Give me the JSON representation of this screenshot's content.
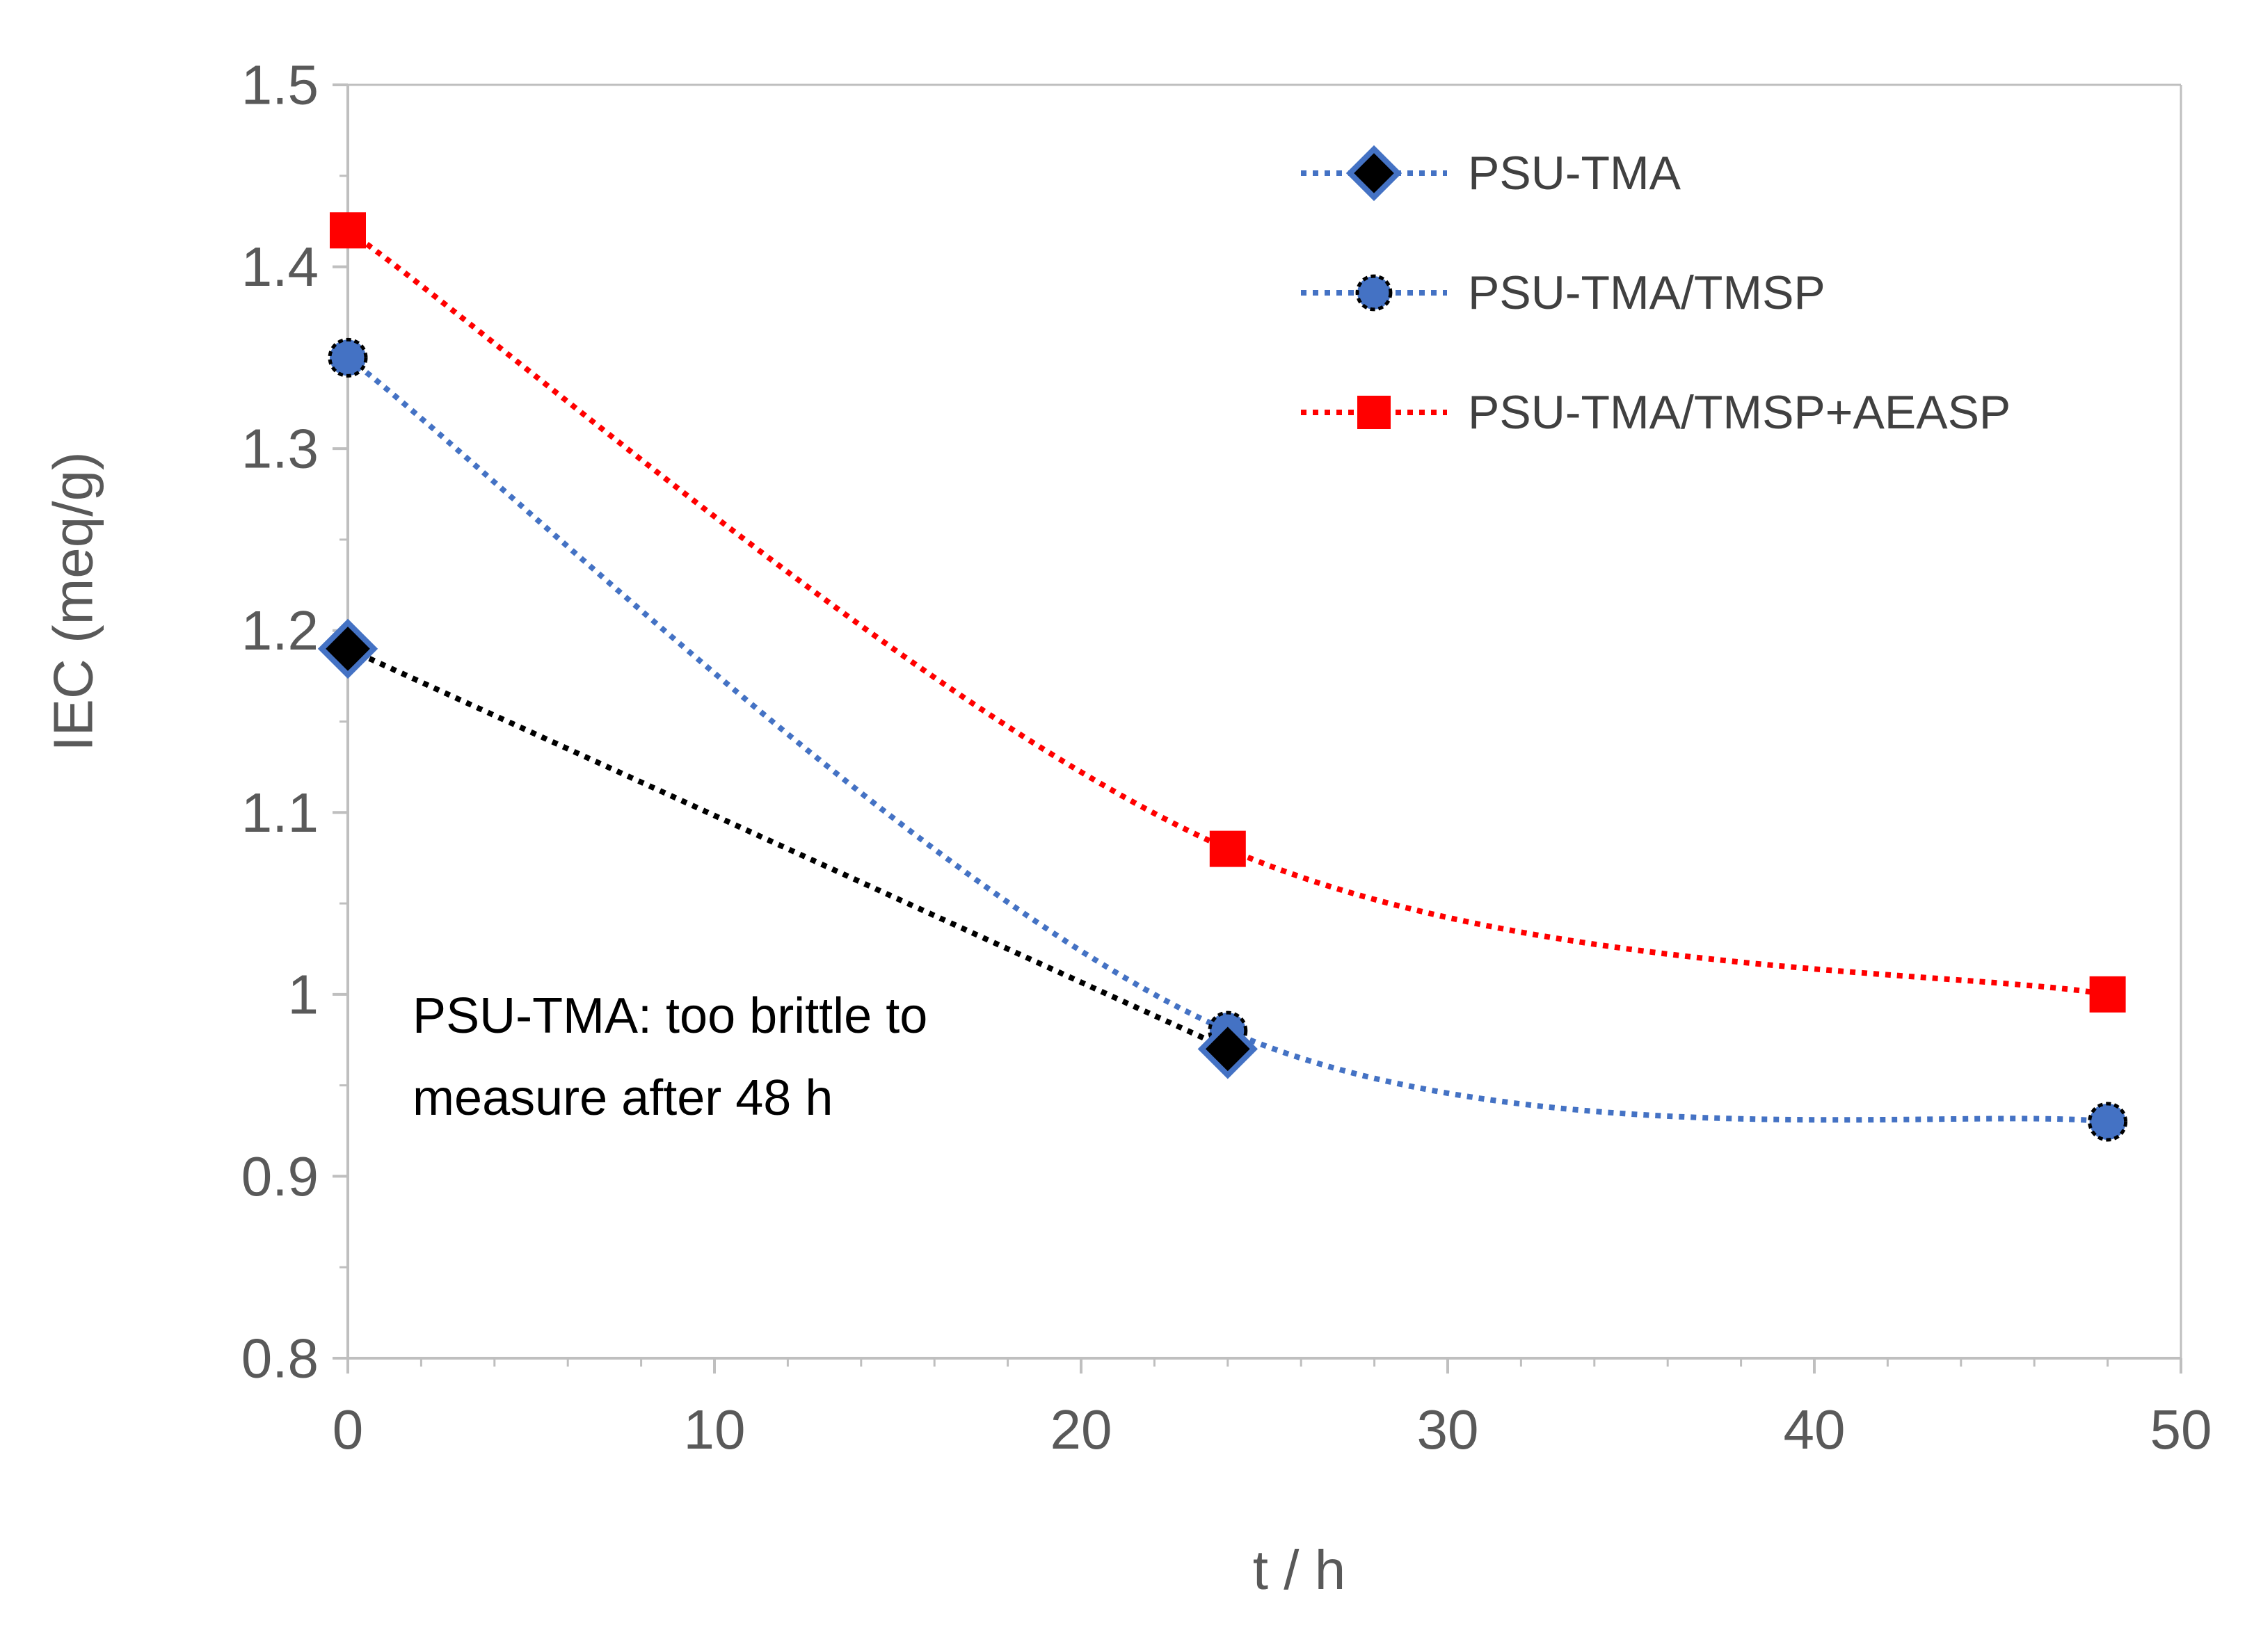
{
  "chart_data": {
    "type": "line",
    "title": "",
    "xlabel": "t / h",
    "ylabel": "IEC (meq/g)",
    "xlim": [
      0,
      50
    ],
    "ylim": [
      0.8,
      1.5
    ],
    "x_ticks": [
      "0",
      "10",
      "20",
      "30",
      "40",
      "50"
    ],
    "y_ticks": [
      "0.8",
      "0.9",
      "1",
      "1.1",
      "1.2",
      "1.3",
      "1.4",
      "1.5"
    ],
    "grid": false,
    "legend_position": "top-right",
    "series": [
      {
        "name": "PSU-TMA",
        "x": [
          0,
          24
        ],
        "values": [
          1.19,
          0.97
        ],
        "line_color": "#000000",
        "legend_line_color": "#4472C4",
        "marker": "diamond",
        "marker_fill": "#000000",
        "marker_edge": "#4472C4",
        "line_style": "dotted",
        "smooth": false
      },
      {
        "name": "PSU-TMA/TMSP",
        "x": [
          0,
          24,
          48
        ],
        "values": [
          1.35,
          0.98,
          0.93
        ],
        "line_color": "#4472C4",
        "legend_line_color": "#4472C4",
        "marker": "circle",
        "marker_fill": "#4472C4",
        "marker_edge": "#000000",
        "line_style": "dotted",
        "smooth": true
      },
      {
        "name": "PSU-TMA/TMSP+AEASP",
        "x": [
          0,
          24,
          48
        ],
        "values": [
          1.42,
          1.08,
          1.0
        ],
        "line_color": "#FF0000",
        "legend_line_color": "#FF0000",
        "marker": "square",
        "marker_fill": "#FF0000",
        "marker_edge": "#FF0000",
        "line_style": "dotted",
        "smooth": true
      }
    ],
    "annotations": [
      {
        "lines": [
          "PSU-TMA: too brittle to",
          "measure after 48 h"
        ],
        "x": 1.5,
        "y": 1.0
      }
    ]
  }
}
